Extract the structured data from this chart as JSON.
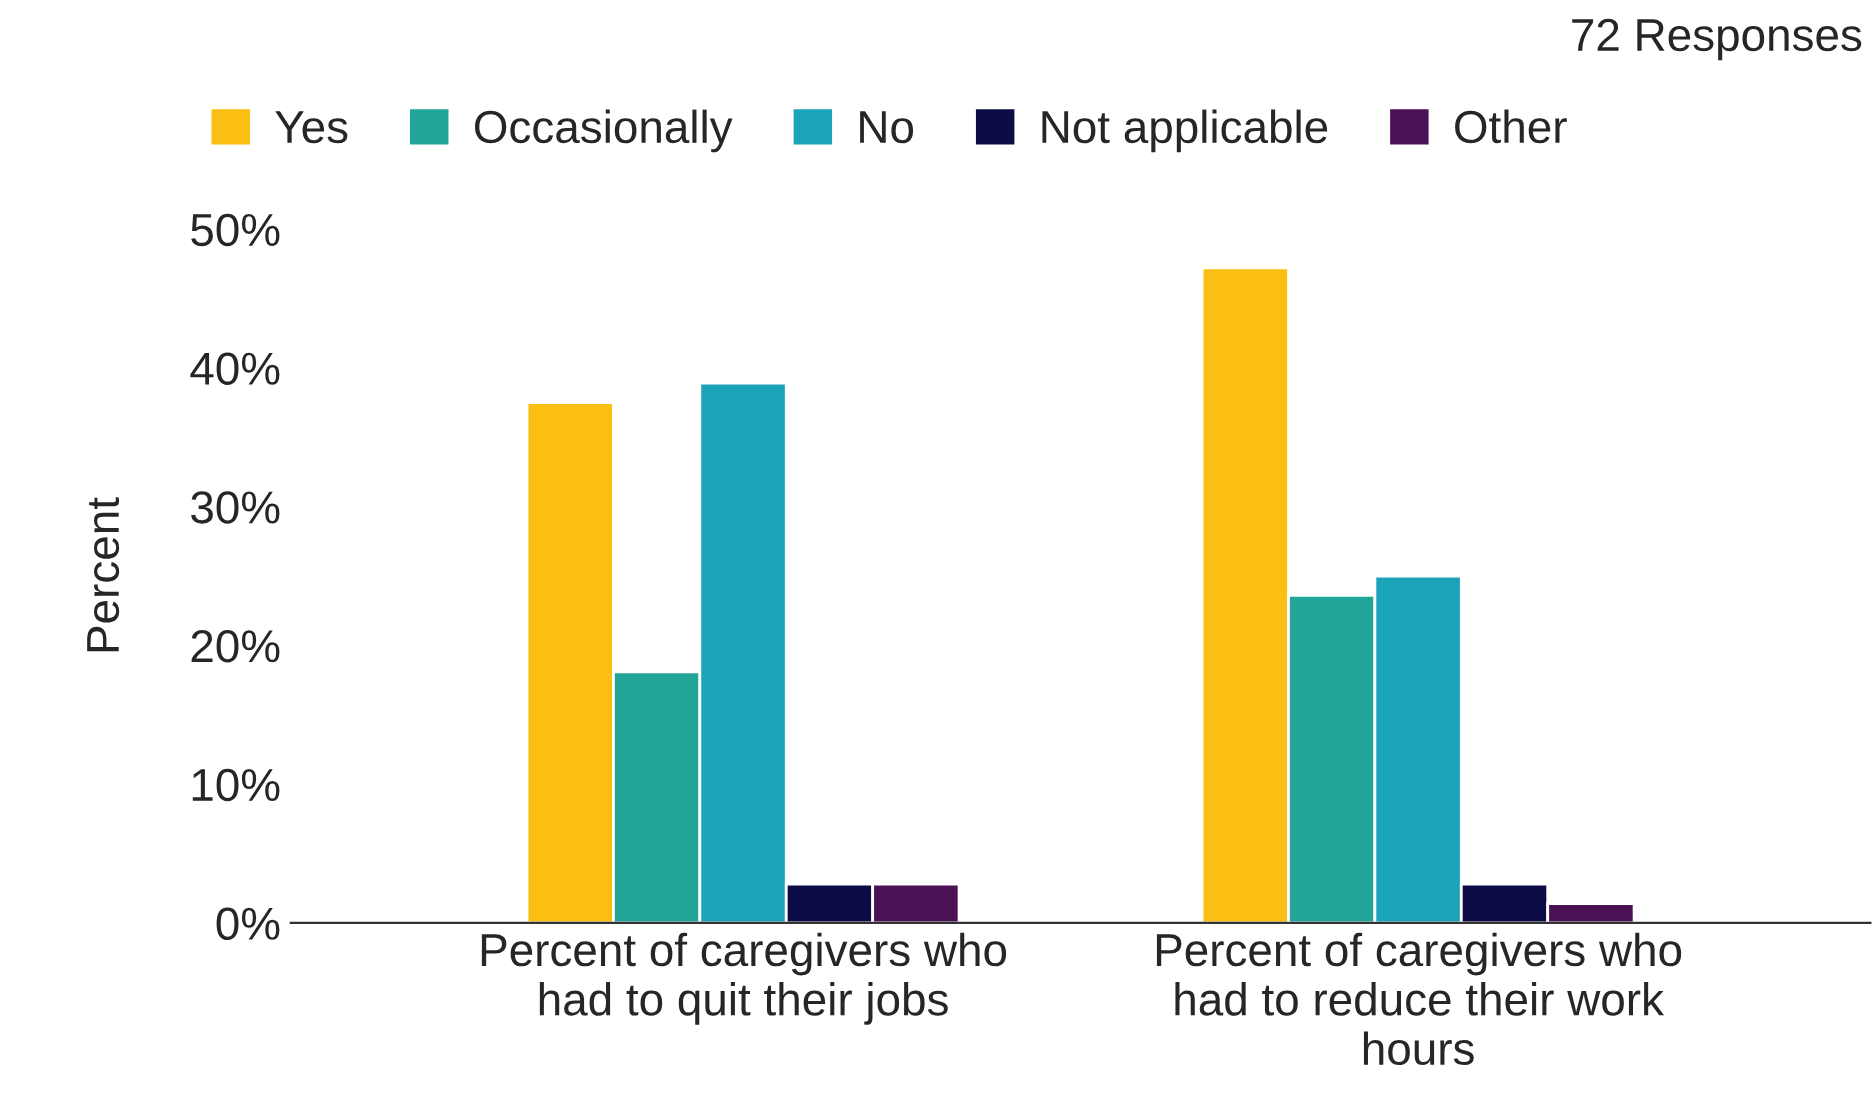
{
  "chart_data": {
    "type": "bar",
    "subtitle": "72 Responses",
    "ylabel": "Percent",
    "categories": [
      "Percent of caregivers who\nhad to quit their jobs",
      "Percent of caregivers who\nhad to reduce their work\nhours"
    ],
    "series": [
      {
        "name": "Yes",
        "color": "#fbbf14",
        "values": [
          37.5,
          47.2
        ]
      },
      {
        "name": "Occasionally",
        "color": "#22a598",
        "values": [
          18.1,
          23.6
        ]
      },
      {
        "name": "No",
        "color": "#1ba3ba",
        "values": [
          38.9,
          25.0
        ]
      },
      {
        "name": "Not applicable",
        "color": "#0c0b45",
        "values": [
          2.8,
          2.8
        ]
      },
      {
        "name": "Other",
        "color": "#4b1155",
        "values": [
          2.8,
          1.4
        ]
      }
    ],
    "ylim": [
      0,
      50
    ],
    "yticks": [
      {
        "value": 0,
        "label": "0%"
      },
      {
        "value": 10,
        "label": "10%"
      },
      {
        "value": 20,
        "label": "20%"
      },
      {
        "value": 30,
        "label": "30%"
      },
      {
        "value": 40,
        "label": "40%"
      },
      {
        "value": 50,
        "label": "50%"
      }
    ],
    "grid": false,
    "legend": "top"
  }
}
